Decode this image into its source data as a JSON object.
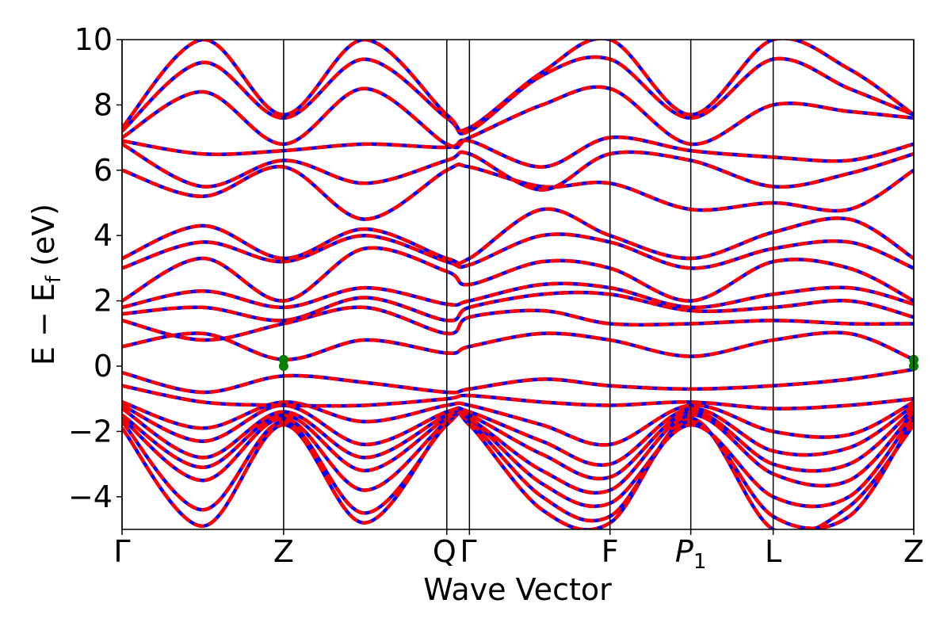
{
  "chart_data": {
    "type": "line",
    "title": "",
    "xlabel": "Wave Vector",
    "ylabel_main": "E − E",
    "ylabel_sub": "f",
    "ylabel_unit": " (eV)",
    "ylim": [
      -5,
      10
    ],
    "yticks": [
      -4,
      -2,
      0,
      2,
      4,
      6,
      8,
      10
    ],
    "ytick_labels": [
      "−4",
      "−2",
      "0",
      "2",
      "4",
      "6",
      "8",
      "10"
    ],
    "xlim": [
      0,
      4.9
    ],
    "kpoints": [
      {
        "label": "Γ",
        "x": 0.0
      },
      {
        "label": "Z",
        "x": 1.0
      },
      {
        "label": "Q",
        "x": 2.01
      },
      {
        "label": "Γ",
        "x": 2.15
      },
      {
        "label": "F",
        "x": 3.02
      },
      {
        "label": "P",
        "sub": "1",
        "x": 3.52
      },
      {
        "label": "L",
        "x": 4.03
      },
      {
        "label": "Z",
        "x": 4.9
      }
    ],
    "grid": false,
    "legend": "none",
    "series_colors": {
      "dft": "#ff0000",
      "model": "#0000ff",
      "marker": "#008000"
    },
    "marker_points": [
      {
        "x": 1.0,
        "y": 0.2
      },
      {
        "x": 1.0,
        "y": 0.0
      },
      {
        "x": 4.9,
        "y": 0.2
      },
      {
        "x": 4.9,
        "y": 0.0
      }
    ],
    "bands": [
      {
        "x": [
          0,
          0.5,
          1.0,
          1.5,
          2.01,
          2.15,
          2.6,
          3.02,
          3.52,
          4.03,
          4.5,
          4.9
        ],
        "y": [
          -1.9,
          -4.9,
          -1.8,
          -4.8,
          -1.7,
          -1.8,
          -4.4,
          -4.8,
          -1.6,
          -5.0,
          -4.3,
          -1.8
        ]
      },
      {
        "x": [
          0,
          0.5,
          1.0,
          1.5,
          2.01,
          2.15,
          2.6,
          3.02,
          3.52,
          4.03,
          4.5,
          4.9
        ],
        "y": [
          -1.7,
          -4.4,
          -1.7,
          -4.5,
          -1.8,
          -1.7,
          -4.0,
          -4.6,
          -1.7,
          -4.6,
          -4.6,
          -1.6
        ]
      },
      {
        "x": [
          0,
          0.5,
          1.0,
          1.5,
          2.01,
          2.15,
          2.6,
          3.02,
          3.52,
          4.03,
          4.5,
          4.9
        ],
        "y": [
          -1.6,
          -3.5,
          -1.6,
          -3.8,
          -1.7,
          -1.6,
          -3.6,
          -4.2,
          -1.8,
          -4.0,
          -4.0,
          -1.5
        ]
      },
      {
        "x": [
          0,
          0.5,
          1.0,
          1.5,
          2.01,
          2.15,
          2.6,
          3.02,
          3.52,
          4.03,
          4.5,
          4.9
        ],
        "y": [
          -1.5,
          -3.1,
          -1.5,
          -3.2,
          -1.6,
          -1.6,
          -3.2,
          -3.8,
          -1.5,
          -3.3,
          -3.5,
          -1.4
        ]
      },
      {
        "x": [
          0,
          0.5,
          1.0,
          1.5,
          2.01,
          2.15,
          2.6,
          3.02,
          3.52,
          4.03,
          4.5,
          4.9
        ],
        "y": [
          -1.3,
          -2.8,
          -1.4,
          -2.8,
          -1.5,
          -1.5,
          -2.7,
          -3.4,
          -1.4,
          -3.0,
          -3.0,
          -1.3
        ]
      },
      {
        "x": [
          0,
          0.5,
          1.0,
          1.5,
          2.01,
          2.15,
          2.6,
          3.02,
          3.52,
          4.03,
          4.5,
          4.9
        ],
        "y": [
          -1.2,
          -2.3,
          -1.2,
          -2.4,
          -1.4,
          -1.4,
          -2.3,
          -3.0,
          -1.3,
          -2.6,
          -2.5,
          -1.2
        ]
      },
      {
        "x": [
          0,
          0.5,
          1.0,
          1.5,
          2.01,
          2.15,
          2.6,
          3.02,
          3.52,
          4.03,
          4.5,
          4.9
        ],
        "y": [
          -1.1,
          -1.9,
          -1.1,
          -1.7,
          -1.2,
          -1.2,
          -1.8,
          -2.4,
          -1.2,
          -2.0,
          -2.1,
          -1.1
        ]
      },
      {
        "x": [
          0,
          0.5,
          1.0,
          1.5,
          2.01,
          2.15,
          2.6,
          3.02,
          3.52,
          4.03,
          4.5,
          4.9
        ],
        "y": [
          -0.6,
          -1.1,
          -1.2,
          -1.2,
          -1.0,
          -0.9,
          -1.1,
          -1.2,
          -1.1,
          -1.3,
          -1.2,
          -1.0
        ]
      },
      {
        "x": [
          0,
          0.5,
          1.0,
          1.5,
          2.01,
          2.15,
          2.6,
          3.02,
          3.52,
          4.03,
          4.5,
          4.9
        ],
        "y": [
          -0.2,
          -0.8,
          -0.3,
          -0.5,
          -0.8,
          -0.7,
          -0.4,
          -0.6,
          -0.7,
          -0.6,
          -0.4,
          -0.1
        ]
      },
      {
        "x": [
          0,
          0.5,
          1.0,
          1.5,
          2.01,
          2.15,
          2.6,
          3.02,
          3.52,
          4.03,
          4.5,
          4.9
        ],
        "y": [
          0.6,
          1.0,
          0.2,
          0.8,
          0.4,
          0.6,
          1.0,
          0.8,
          0.3,
          0.8,
          1.0,
          0.2
        ]
      },
      {
        "x": [
          0,
          0.5,
          1.0,
          1.5,
          2.01,
          2.15,
          2.6,
          3.02,
          3.52,
          4.03,
          4.5,
          4.9
        ],
        "y": [
          1.4,
          0.8,
          1.3,
          1.8,
          1.0,
          1.5,
          1.7,
          1.3,
          1.3,
          1.4,
          1.3,
          1.3
        ]
      },
      {
        "x": [
          0,
          0.5,
          1.0,
          1.5,
          2.01,
          2.15,
          2.6,
          3.02,
          3.52,
          4.03,
          4.5,
          4.9
        ],
        "y": [
          1.6,
          1.8,
          1.4,
          2.1,
          1.4,
          1.8,
          2.2,
          2.2,
          1.7,
          1.8,
          2.0,
          1.5
        ]
      },
      {
        "x": [
          0,
          0.5,
          1.0,
          1.5,
          2.01,
          2.15,
          2.6,
          3.02,
          3.52,
          4.03,
          4.5,
          4.9
        ],
        "y": [
          1.8,
          2.3,
          1.8,
          2.4,
          1.9,
          2.0,
          2.5,
          2.4,
          1.8,
          2.2,
          2.4,
          1.9
        ]
      },
      {
        "x": [
          0,
          0.5,
          1.0,
          1.5,
          2.01,
          2.15,
          2.6,
          3.02,
          3.52,
          4.03,
          4.5,
          4.9
        ],
        "y": [
          2.0,
          3.3,
          2.0,
          3.6,
          2.9,
          2.5,
          3.2,
          3.0,
          2.0,
          3.2,
          3.0,
          2.0
        ]
      },
      {
        "x": [
          0,
          0.5,
          1.0,
          1.5,
          2.01,
          2.15,
          2.6,
          3.02,
          3.52,
          4.03,
          4.5,
          4.9
        ],
        "y": [
          3.0,
          3.8,
          3.2,
          4.0,
          3.2,
          3.1,
          4.0,
          3.8,
          3.0,
          3.6,
          3.8,
          3.0
        ]
      },
      {
        "x": [
          0,
          0.5,
          1.0,
          1.5,
          2.01,
          2.15,
          2.6,
          3.02,
          3.52,
          4.03,
          4.5,
          4.9
        ],
        "y": [
          3.3,
          4.3,
          3.3,
          4.2,
          3.3,
          3.3,
          4.8,
          4.0,
          3.3,
          4.1,
          4.5,
          3.3
        ]
      },
      {
        "x": [
          0,
          0.5,
          1.0,
          1.5,
          2.01,
          2.15,
          2.6,
          3.02,
          3.52,
          4.03,
          4.5,
          4.9
        ],
        "y": [
          6.0,
          5.2,
          6.1,
          4.5,
          6.0,
          6.1,
          5.5,
          5.6,
          4.8,
          5.0,
          4.8,
          6.0
        ]
      },
      {
        "x": [
          0,
          0.5,
          1.0,
          1.5,
          2.01,
          2.15,
          2.6,
          3.02,
          3.52,
          4.03,
          4.5,
          4.9
        ],
        "y": [
          6.8,
          5.5,
          6.3,
          5.6,
          6.3,
          6.5,
          5.4,
          6.5,
          6.3,
          5.5,
          5.9,
          6.5
        ]
      },
      {
        "x": [
          0,
          0.5,
          1.0,
          1.5,
          2.01,
          2.15,
          2.6,
          3.02,
          3.52,
          4.03,
          4.5,
          4.9
        ],
        "y": [
          6.9,
          6.5,
          6.6,
          6.8,
          6.7,
          6.9,
          6.1,
          7.0,
          6.6,
          6.4,
          6.3,
          6.8
        ]
      },
      {
        "x": [
          0,
          0.5,
          1.0,
          1.5,
          2.01,
          2.15,
          2.6,
          3.02,
          3.52,
          4.03,
          4.5,
          4.9
        ],
        "y": [
          7.0,
          8.4,
          6.8,
          8.5,
          6.8,
          7.0,
          8.0,
          8.5,
          6.8,
          8.0,
          7.8,
          7.6
        ]
      },
      {
        "x": [
          0,
          0.5,
          1.0,
          1.5,
          2.01,
          2.15,
          2.6,
          3.02,
          3.52,
          4.03,
          4.5,
          4.9
        ],
        "y": [
          7.2,
          9.3,
          7.6,
          9.4,
          7.6,
          7.2,
          8.9,
          9.4,
          7.6,
          9.4,
          8.5,
          7.7
        ]
      },
      {
        "x": [
          0,
          0.5,
          1.0,
          1.5,
          2.01,
          2.15,
          2.6,
          3.02,
          3.52,
          4.03,
          4.5,
          4.9
        ],
        "y": [
          7.3,
          10.0,
          7.7,
          10.0,
          7.7,
          7.3,
          9.0,
          10.0,
          7.7,
          10.0,
          9.1,
          7.7
        ]
      }
    ]
  }
}
